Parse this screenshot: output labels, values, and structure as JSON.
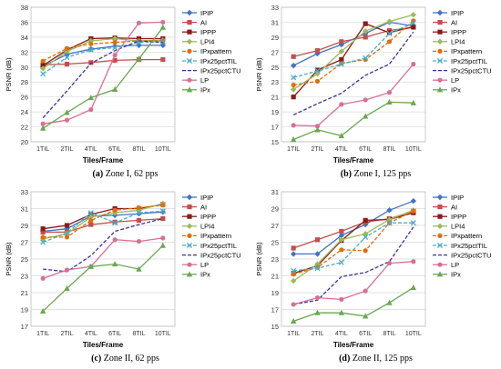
{
  "chart_data": [
    {
      "type": "line",
      "caption_tag": "(a)",
      "caption_text": "Zone I, 62 pps",
      "xlabel": "Tiles/Frame",
      "ylabel": "PSNR (dB)",
      "ylim": [
        20,
        38
      ],
      "yticks": [
        20,
        22,
        24,
        26,
        28,
        30,
        32,
        34,
        36,
        38
      ],
      "categories": [
        "1TIL",
        "2TIL",
        "4TIL",
        "6TIL",
        "8TIL",
        "10TIL"
      ],
      "grid": true,
      "legend": "right",
      "series": [
        {
          "name": "IPIP",
          "values": [
            30.1,
            31.7,
            32.4,
            32.8,
            32.9,
            32.9
          ]
        },
        {
          "name": "AI",
          "values": [
            30.3,
            30.4,
            30.6,
            30.9,
            31.0,
            31.0
          ]
        },
        {
          "name": "IPPP",
          "values": [
            30.2,
            32.3,
            33.8,
            33.9,
            33.8,
            33.8
          ]
        },
        {
          "name": "LPI4",
          "values": [
            29.8,
            32.1,
            33.5,
            33.8,
            33.5,
            33.6
          ]
        },
        {
          "name": "IPxpattern",
          "values": [
            30.8,
            32.5,
            33.1,
            33.3,
            33.5,
            33.5
          ]
        },
        {
          "name": "IPx25pctTIL",
          "values": [
            29.1,
            31.3,
            32.3,
            32.6,
            33.3,
            33.4
          ]
        },
        {
          "name": "IPx25pctCTU",
          "values": [
            23.2,
            26.8,
            30.5,
            32.2,
            33.5,
            33.3
          ]
        },
        {
          "name": "LP",
          "values": [
            22.4,
            22.9,
            24.3,
            31.6,
            35.9,
            36.0
          ]
        },
        {
          "name": "IPx",
          "values": [
            21.8,
            23.9,
            25.9,
            27.0,
            31.1,
            35.3
          ]
        }
      ]
    },
    {
      "type": "line",
      "caption_tag": "(b)",
      "caption_text": "Zone I, 125 pps",
      "xlabel": "Tiles/Frame",
      "ylabel": "PSNR (dB)",
      "ylim": [
        15,
        33
      ],
      "yticks": [
        15,
        17,
        19,
        21,
        23,
        25,
        27,
        29,
        31,
        33
      ],
      "categories": [
        "1TIL",
        "2TIL",
        "4TIL",
        "6TIL",
        "8TIL",
        "10TIL"
      ],
      "grid": true,
      "legend": "right",
      "series": [
        {
          "name": "IPIP",
          "values": [
            25.2,
            26.8,
            28.0,
            29.5,
            31.0,
            30.5
          ]
        },
        {
          "name": "AI",
          "values": [
            26.4,
            27.2,
            28.4,
            29.0,
            29.9,
            30.3
          ]
        },
        {
          "name": "IPPP",
          "values": [
            21.0,
            24.6,
            26.0,
            30.8,
            29.6,
            30.4
          ]
        },
        {
          "name": "LPI4",
          "values": [
            22.0,
            24.1,
            27.1,
            29.8,
            31.1,
            32.0
          ]
        },
        {
          "name": "IPxpattern",
          "values": [
            22.6,
            23.1,
            25.5,
            26.0,
            28.4,
            31.2
          ]
        },
        {
          "name": "IPx25pctTIL",
          "values": [
            23.6,
            24.5,
            25.4,
            26.2,
            29.5,
            30.9
          ]
        },
        {
          "name": "IPx25pctCTU",
          "values": [
            18.6,
            20.1,
            21.5,
            23.9,
            25.4,
            29.7
          ]
        },
        {
          "name": "LP",
          "values": [
            17.2,
            17.1,
            20.0,
            20.6,
            21.6,
            25.4
          ]
        },
        {
          "name": "IPx",
          "values": [
            15.3,
            16.6,
            15.8,
            18.4,
            20.3,
            20.2
          ]
        }
      ]
    },
    {
      "type": "line",
      "caption_tag": "(c)",
      "caption_text": "Zone II, 62 pps",
      "xlabel": "Tiles/Frame",
      "ylabel": "PSNR (dB)",
      "ylim": [
        17,
        33
      ],
      "yticks": [
        17,
        19,
        21,
        23,
        25,
        27,
        29,
        31,
        33
      ],
      "categories": [
        "1TIL",
        "2TIL",
        "4TIL",
        "6TIL",
        "8TIL",
        "10TIL"
      ],
      "grid": true,
      "legend": "right",
      "series": [
        {
          "name": "IPIP",
          "values": [
            28.3,
            28.6,
            30.1,
            30.2,
            30.4,
            30.6
          ]
        },
        {
          "name": "AI",
          "values": [
            28.2,
            28.2,
            29.1,
            29.4,
            29.6,
            29.8
          ]
        },
        {
          "name": "IPPP",
          "values": [
            28.6,
            29.0,
            30.3,
            31.0,
            31.0,
            31.5
          ]
        },
        {
          "name": "LPI4",
          "values": [
            27.4,
            28.0,
            30.0,
            30.5,
            30.8,
            31.6
          ]
        },
        {
          "name": "IPxpattern",
          "values": [
            27.6,
            27.6,
            29.6,
            30.8,
            31.1,
            31.4
          ]
        },
        {
          "name": "IPx25pctTIL",
          "values": [
            27.0,
            28.1,
            30.5,
            29.3,
            30.5,
            30.7
          ]
        },
        {
          "name": "IPx25pctCTU",
          "values": [
            23.8,
            23.5,
            25.4,
            28.3,
            29.1,
            29.8
          ]
        },
        {
          "name": "LP",
          "values": [
            22.7,
            23.7,
            24.1,
            27.3,
            27.1,
            27.5
          ]
        },
        {
          "name": "IPx",
          "values": [
            18.8,
            21.5,
            24.1,
            24.4,
            23.8,
            26.6
          ]
        }
      ]
    },
    {
      "type": "line",
      "caption_tag": "(d)",
      "caption_text": "Zone II, 125 pps",
      "xlabel": "Tiles/Frame",
      "ylabel": "PSNR (dB)",
      "ylim": [
        15,
        31
      ],
      "yticks": [
        15,
        17,
        19,
        21,
        23,
        25,
        27,
        29,
        31
      ],
      "categories": [
        "1TIL",
        "2TIL",
        "4TIL",
        "6TIL",
        "8TIL",
        "10TIL"
      ],
      "grid": true,
      "legend": "right",
      "series": [
        {
          "name": "IPIP",
          "values": [
            23.6,
            23.6,
            25.8,
            27.1,
            28.8,
            29.9
          ]
        },
        {
          "name": "AI",
          "values": [
            24.3,
            25.3,
            26.3,
            27.4,
            27.8,
            28.7
          ]
        },
        {
          "name": "IPPP",
          "values": [
            21.3,
            22.2,
            25.2,
            27.6,
            27.7,
            28.5
          ]
        },
        {
          "name": "LPI4",
          "values": [
            20.4,
            22.4,
            25.3,
            26.0,
            27.7,
            28.8
          ]
        },
        {
          "name": "IPxpattern",
          "values": [
            21.2,
            22.0,
            24.1,
            24.0,
            27.3,
            28.7
          ]
        },
        {
          "name": "IPx25pctTIL",
          "values": [
            21.6,
            21.9,
            22.6,
            25.6,
            27.3,
            27.3
          ]
        },
        {
          "name": "IPx25pctCTU",
          "values": [
            17.6,
            18.1,
            20.9,
            21.4,
            22.7,
            26.8
          ]
        },
        {
          "name": "LP",
          "values": [
            17.6,
            18.4,
            18.2,
            19.2,
            22.5,
            22.7
          ]
        },
        {
          "name": "IPx",
          "values": [
            15.6,
            16.6,
            16.6,
            16.2,
            17.8,
            19.6
          ]
        }
      ]
    }
  ],
  "series_styles": {
    "IPIP": {
      "color": "#4472c4",
      "marker": "diamond",
      "dash": ""
    },
    "AI": {
      "color": "#c0504d",
      "marker": "square",
      "dash": ""
    },
    "IPPP": {
      "color": "#8b1a1a",
      "marker": "square",
      "dash": ""
    },
    "LPI4": {
      "color": "#9bbb59",
      "marker": "diamond",
      "dash": ""
    },
    "IPxpattern": {
      "color": "#e36c0a",
      "marker": "circle",
      "dash": "4,2"
    },
    "IPx25pctTIL": {
      "color": "#4bacc6",
      "marker": "x",
      "dash": "4,2"
    },
    "IPx25pctCTU": {
      "color": "#403294",
      "marker": "none",
      "dash": "4,2"
    },
    "LP": {
      "color": "#d87093",
      "marker": "circle",
      "dash": ""
    },
    "IPx": {
      "color": "#6aa84f",
      "marker": "triangle",
      "dash": ""
    }
  }
}
